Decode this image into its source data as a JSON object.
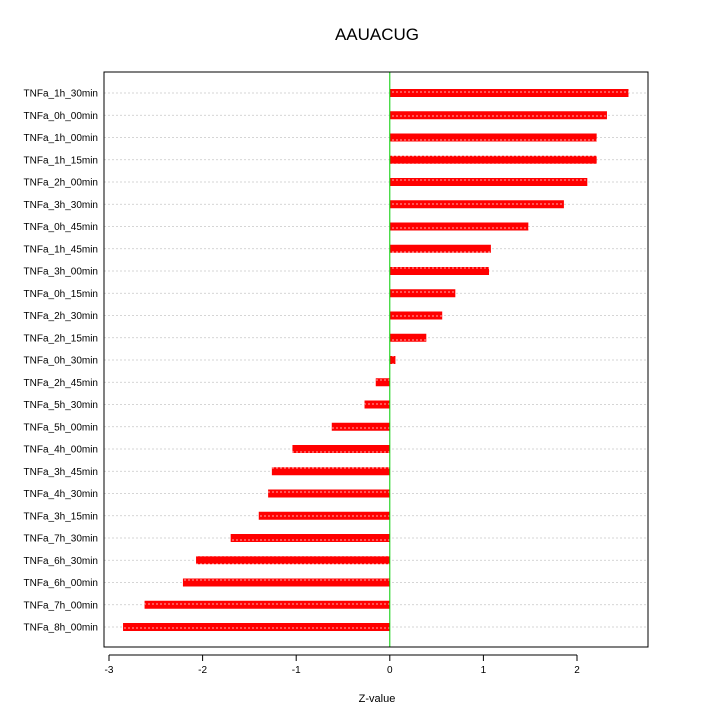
{
  "chart_data": {
    "type": "bar",
    "orientation": "horizontal",
    "title": "AAUACUG",
    "xlabel": "Z-value",
    "ylabel": "",
    "xlim": [
      -3,
      2.8
    ],
    "xticks": [
      -3,
      -2,
      -1,
      0,
      1,
      2
    ],
    "xtick_labels": [
      "-3",
      "-2",
      "-1",
      "0",
      "1",
      "2"
    ],
    "grid": "horizontal-dotted",
    "zero_line": true,
    "categories": [
      "TNFa_1h_30min",
      "TNFa_0h_00min",
      "TNFa_1h_00min",
      "TNFa_1h_15min",
      "TNFa_2h_00min",
      "TNFa_3h_30min",
      "TNFa_0h_45min",
      "TNFa_1h_45min",
      "TNFa_3h_00min",
      "TNFa_0h_15min",
      "TNFa_2h_30min",
      "TNFa_2h_15min",
      "TNFa_0h_30min",
      "TNFa_2h_45min",
      "TNFa_5h_30min",
      "TNFa_5h_00min",
      "TNFa_4h_00min",
      "TNFa_3h_45min",
      "TNFa_4h_30min",
      "TNFa_3h_15min",
      "TNFa_7h_30min",
      "TNFa_6h_30min",
      "TNFa_6h_00min",
      "TNFa_7h_00min",
      "TNFa_8h_00min"
    ],
    "values": [
      2.55,
      2.32,
      2.21,
      2.21,
      2.11,
      1.86,
      1.48,
      1.08,
      1.06,
      0.7,
      0.56,
      0.39,
      0.06,
      -0.15,
      -0.27,
      -0.62,
      -1.04,
      -1.26,
      -1.3,
      -1.4,
      -1.7,
      -2.07,
      -2.21,
      -2.62,
      -2.85
    ],
    "colors": {
      "bar": "#ff0000",
      "bar_stripe": "#ffaaaa",
      "zero_line": "#00cc00",
      "grid": "#c8c8c8"
    }
  }
}
